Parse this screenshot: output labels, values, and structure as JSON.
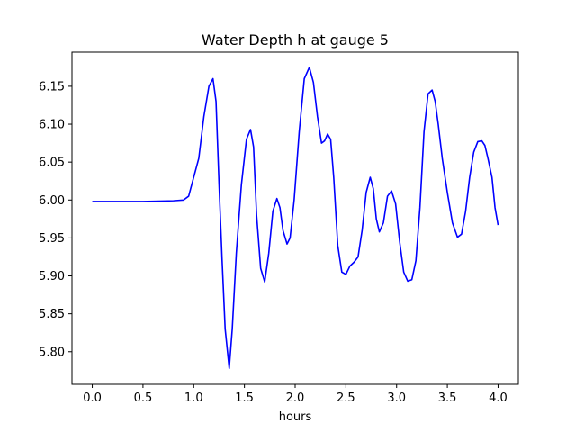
{
  "chart_data": {
    "type": "line",
    "title": "Water Depth h at gauge 5",
    "xlabel": "hours",
    "ylabel": "",
    "xlim": [
      -0.2,
      4.2
    ],
    "ylim": [
      5.757,
      6.195
    ],
    "grid": false,
    "legend": "none",
    "xticks": [
      0.0,
      0.5,
      1.0,
      1.5,
      2.0,
      2.5,
      3.0,
      3.5,
      4.0
    ],
    "xtick_labels": [
      "0.0",
      "0.5",
      "1.0",
      "1.5",
      "2.0",
      "2.5",
      "3.0",
      "3.5",
      "4.0"
    ],
    "yticks": [
      5.8,
      5.85,
      5.9,
      5.95,
      6.0,
      6.05,
      6.1,
      6.15
    ],
    "ytick_labels": [
      "5.80",
      "5.85",
      "5.90",
      "5.95",
      "6.00",
      "6.05",
      "6.10",
      "6.15"
    ],
    "series": [
      {
        "color": "#0000ff",
        "x": [
          0.0,
          0.5,
          0.8,
          0.9,
          0.95,
          1.0,
          1.05,
          1.1,
          1.15,
          1.19,
          1.22,
          1.25,
          1.28,
          1.31,
          1.35,
          1.38,
          1.42,
          1.47,
          1.52,
          1.56,
          1.59,
          1.62,
          1.66,
          1.7,
          1.74,
          1.78,
          1.82,
          1.85,
          1.88,
          1.92,
          1.95,
          1.99,
          2.04,
          2.09,
          2.14,
          2.18,
          2.22,
          2.26,
          2.29,
          2.32,
          2.35,
          2.38,
          2.42,
          2.46,
          2.5,
          2.54,
          2.58,
          2.62,
          2.66,
          2.7,
          2.74,
          2.77,
          2.8,
          2.83,
          2.87,
          2.91,
          2.95,
          2.99,
          3.03,
          3.07,
          3.11,
          3.15,
          3.19,
          3.23,
          3.27,
          3.31,
          3.35,
          3.38,
          3.41,
          3.45,
          3.5,
          3.55,
          3.6,
          3.64,
          3.68,
          3.72,
          3.76,
          3.8,
          3.84,
          3.87,
          3.9,
          3.94,
          3.97,
          4.0
        ],
        "y": [
          5.998,
          5.998,
          5.999,
          6.0,
          6.005,
          6.03,
          6.055,
          6.11,
          6.15,
          6.16,
          6.13,
          6.02,
          5.92,
          5.83,
          5.778,
          5.83,
          5.93,
          6.02,
          6.08,
          6.093,
          6.07,
          5.98,
          5.91,
          5.892,
          5.93,
          5.985,
          6.002,
          5.99,
          5.96,
          5.942,
          5.95,
          6.0,
          6.09,
          6.16,
          6.175,
          6.155,
          6.11,
          6.075,
          6.078,
          6.087,
          6.08,
          6.03,
          5.94,
          5.905,
          5.902,
          5.913,
          5.918,
          5.925,
          5.96,
          6.01,
          6.03,
          6.015,
          5.975,
          5.958,
          5.97,
          6.005,
          6.012,
          5.995,
          5.945,
          5.905,
          5.893,
          5.895,
          5.92,
          5.99,
          6.09,
          6.14,
          6.145,
          6.13,
          6.1,
          6.055,
          6.01,
          5.97,
          5.951,
          5.955,
          5.985,
          6.03,
          6.063,
          6.077,
          6.078,
          6.072,
          6.055,
          6.03,
          5.99,
          5.967
        ]
      }
    ]
  }
}
